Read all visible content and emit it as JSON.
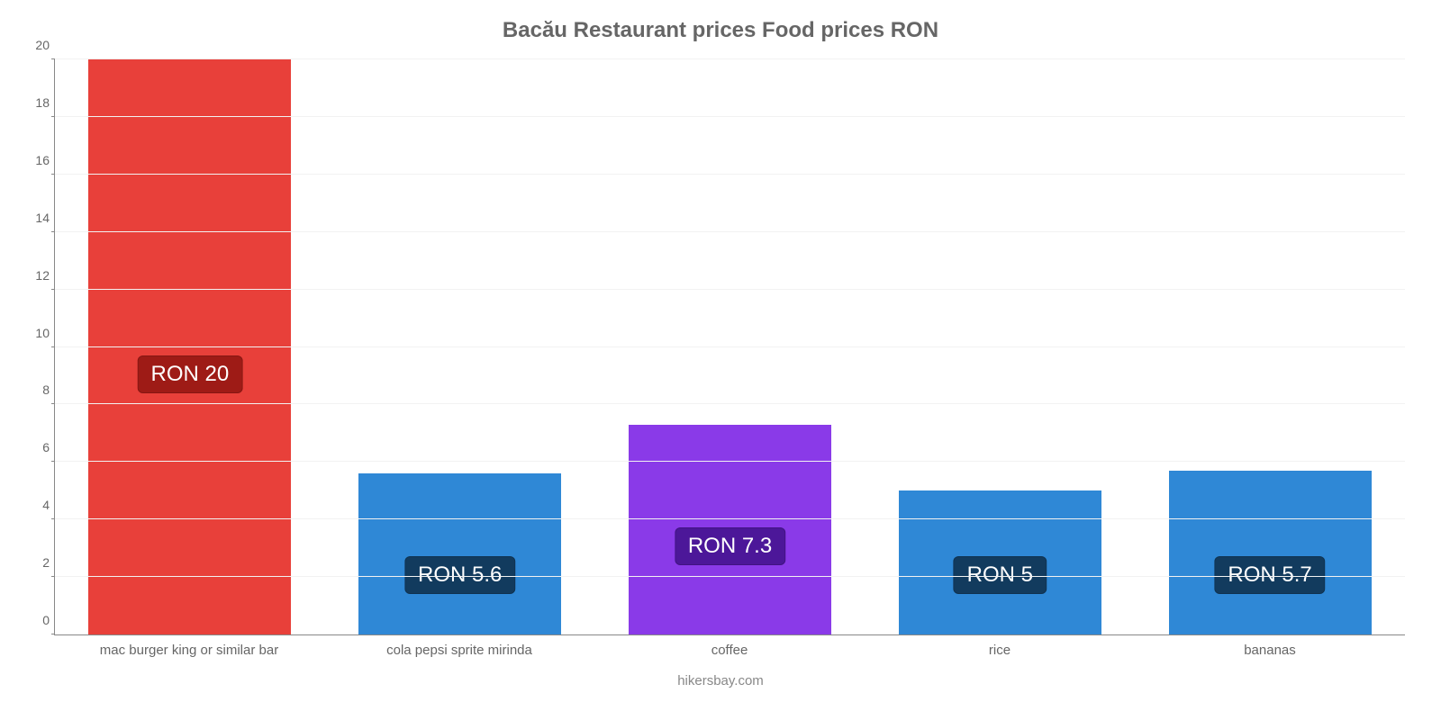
{
  "chart": {
    "type": "bar",
    "title": "Bacău Restaurant prices Food prices RON",
    "title_color": "#666666",
    "title_fontsize": 24,
    "background_color": "#ffffff",
    "grid_color": "#f2f2f2",
    "axis_color": "#888888",
    "ylim": [
      0,
      20
    ],
    "ytick_step": 2,
    "yticks": [
      0,
      2,
      4,
      6,
      8,
      10,
      12,
      14,
      16,
      18,
      20
    ],
    "bar_width_pct": 15,
    "bar_gap_pct": 5,
    "value_label_fontsize": 24,
    "xlabel_fontsize": 15,
    "ytick_fontsize": 14,
    "bars": [
      {
        "category": "mac burger king or similar bar",
        "value": 20,
        "value_label": "RON 20",
        "fill": "#e8403a",
        "badge_bg": "#9e1b16",
        "badge_bottom_pct": 42
      },
      {
        "category": "cola pepsi sprite mirinda",
        "value": 5.6,
        "value_label": "RON 5.6",
        "fill": "#2f88d6",
        "badge_bg": "#123b5e",
        "badge_bottom_pct": 7
      },
      {
        "category": "coffee",
        "value": 7.3,
        "value_label": "RON 7.3",
        "fill": "#8a3ae8",
        "badge_bg": "#4c1799",
        "badge_bottom_pct": 12
      },
      {
        "category": "rice",
        "value": 5.0,
        "value_label": "RON 5",
        "fill": "#2f88d6",
        "badge_bg": "#123b5e",
        "badge_bottom_pct": 7
      },
      {
        "category": "bananas",
        "value": 5.7,
        "value_label": "RON 5.7",
        "fill": "#2f88d6",
        "badge_bg": "#123b5e",
        "badge_bottom_pct": 7
      }
    ],
    "attribution": "hikersbay.com"
  }
}
